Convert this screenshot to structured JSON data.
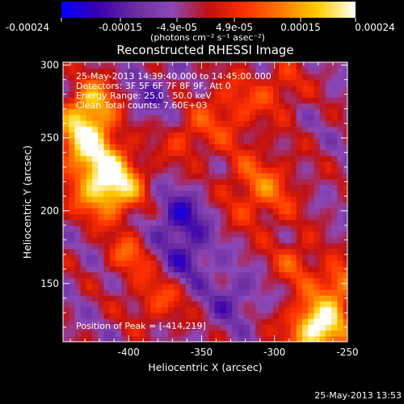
{
  "colorbar": {
    "tick_labels": [
      "-0.00024",
      "-0.00015",
      "-4.9e-05",
      "4.9e-05",
      "0.00015",
      "0.00024"
    ],
    "unit_label": "(photons cm⁻² s⁻¹ asec⁻²)",
    "colors": [
      "#0000ff",
      "#3a00b0",
      "#6a2ca0",
      "#8c48b8",
      "#c01010",
      "#ff3000",
      "#ff7a00",
      "#ffd000",
      "#ffffff"
    ]
  },
  "chart_data": {
    "type": "heatmap",
    "title": "Reconstructed RHESSI Image",
    "xlabel": "Heliocentric X (arcsec)",
    "ylabel": "Heliocentric Y (arcsec)",
    "xlim": [
      -445,
      -250
    ],
    "ylim": [
      110,
      302
    ],
    "xticks": [
      -400,
      -350,
      -300,
      -250
    ],
    "yticks": [
      150,
      200,
      250,
      300
    ],
    "xtick_labels": [
      "-400",
      "-350",
      "-300",
      "-250"
    ],
    "ytick_labels": [
      "150",
      "200",
      "250",
      "300"
    ],
    "grid": false,
    "info_lines": [
      "25-May-2013 14:39:40.000 to 14:45:00.000",
      "Detectors: 3F 5F 6F 7F 8F 9F, Att 0",
      "Energy Range: 25.0 - 50.0 keV",
      "Clean    Total counts: 7.60E+03"
    ],
    "peak_label": "Position of Peak = [-414,219]",
    "peak": {
      "x": -414,
      "y": 219
    },
    "sources": [
      {
        "x": -414,
        "y": 219,
        "amp": 1.0,
        "sigma": 16
      },
      {
        "x": -430,
        "y": 250,
        "amp": 0.75,
        "sigma": 14
      },
      {
        "x": -425,
        "y": 275,
        "amp": 0.6,
        "sigma": 12
      },
      {
        "x": -270,
        "y": 120,
        "amp": 1.0,
        "sigma": 14
      },
      {
        "x": -255,
        "y": 150,
        "amp": 0.55,
        "sigma": 10
      },
      {
        "x": -310,
        "y": 215,
        "amp": 0.45,
        "sigma": 18
      },
      {
        "x": -330,
        "y": 270,
        "amp": 0.35,
        "sigma": 16
      },
      {
        "x": -380,
        "y": 140,
        "amp": 0.35,
        "sigma": 14
      },
      {
        "x": -400,
        "y": 170,
        "amp": 0.4,
        "sigma": 10
      },
      {
        "x": -285,
        "y": 165,
        "amp": 0.35,
        "sigma": 12
      },
      {
        "x": -360,
        "y": 250,
        "amp": 0.3,
        "sigma": 12
      },
      {
        "x": -295,
        "y": 285,
        "amp": 0.3,
        "sigma": 12
      },
      {
        "x": -365,
        "y": 195,
        "amp": -0.45,
        "sigma": 14
      },
      {
        "x": -360,
        "y": 165,
        "amp": -0.35,
        "sigma": 12
      },
      {
        "x": -330,
        "y": 140,
        "amp": -0.3,
        "sigma": 12
      },
      {
        "x": -385,
        "y": 280,
        "amp": -0.25,
        "sigma": 12
      }
    ]
  },
  "timestamp": "25-May-2013 13:53"
}
